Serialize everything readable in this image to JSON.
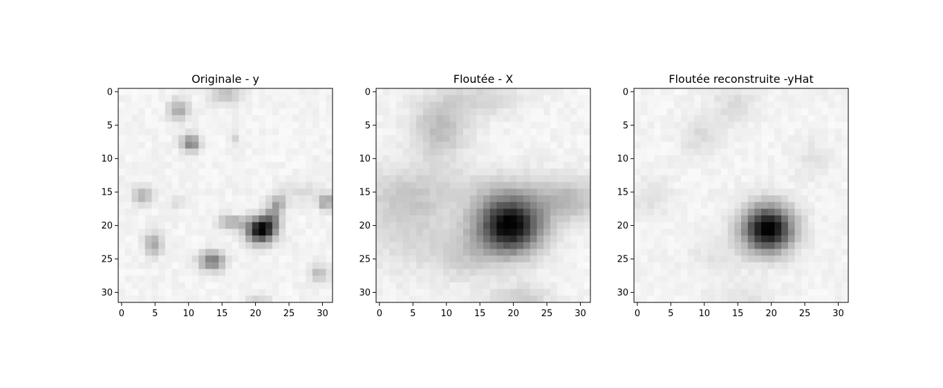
{
  "figure": {
    "background": "#ffffff",
    "colormap": "Greys",
    "axis_color": "#000000"
  },
  "chart_data": [
    {
      "type": "heatmap",
      "title": "Originale - y",
      "grid": false,
      "xlim": [
        -0.5,
        31.5
      ],
      "ylim": [
        31.5,
        -0.5
      ],
      "xticks": [
        0,
        5,
        10,
        15,
        20,
        25,
        30
      ],
      "yticks": [
        0,
        5,
        10,
        15,
        20,
        25,
        30
      ],
      "shape": [
        32,
        32
      ],
      "blobs": [
        {
          "x": 15.5,
          "y": 0.5,
          "sx": 1.6,
          "sy": 0.9,
          "amp": 0.22
        },
        {
          "x": 8.5,
          "y": 2.8,
          "sx": 1.0,
          "sy": 1.1,
          "amp": 0.32
        },
        {
          "x": 10.3,
          "y": 7.7,
          "sx": 1.0,
          "sy": 0.9,
          "amp": 0.45
        },
        {
          "x": 17.0,
          "y": 7.2,
          "sx": 0.6,
          "sy": 0.7,
          "amp": 0.12
        },
        {
          "x": 3.2,
          "y": 15.5,
          "sx": 1.0,
          "sy": 1.0,
          "amp": 0.28
        },
        {
          "x": 8.5,
          "y": 16.5,
          "sx": 0.7,
          "sy": 0.6,
          "amp": 0.12
        },
        {
          "x": 23.3,
          "y": 16.7,
          "sx": 0.8,
          "sy": 0.9,
          "amp": 0.3
        },
        {
          "x": 30.5,
          "y": 16.5,
          "sx": 0.8,
          "sy": 0.8,
          "amp": 0.35
        },
        {
          "x": 27.0,
          "y": 15.0,
          "sx": 2.5,
          "sy": 1.0,
          "amp": 0.1
        },
        {
          "x": 16.5,
          "y": 19.5,
          "sx": 1.5,
          "sy": 0.7,
          "amp": 0.3
        },
        {
          "x": 20.8,
          "y": 20.7,
          "sx": 1.4,
          "sy": 1.3,
          "amp": 1.0
        },
        {
          "x": 22.5,
          "y": 19.0,
          "sx": 0.9,
          "sy": 1.2,
          "amp": 0.35
        },
        {
          "x": 4.8,
          "y": 22.8,
          "sx": 1.0,
          "sy": 1.2,
          "amp": 0.3
        },
        {
          "x": 13.5,
          "y": 25.3,
          "sx": 1.3,
          "sy": 1.0,
          "amp": 0.5
        },
        {
          "x": 29.5,
          "y": 27.2,
          "sx": 0.9,
          "sy": 0.9,
          "amp": 0.25
        },
        {
          "x": 20.5,
          "y": 31.2,
          "sx": 1.3,
          "sy": 0.6,
          "amp": 0.12
        }
      ]
    },
    {
      "type": "heatmap",
      "title": "Floutée - X",
      "grid": false,
      "xlim": [
        -0.5,
        31.5
      ],
      "ylim": [
        31.5,
        -0.5
      ],
      "xticks": [
        0,
        5,
        10,
        15,
        20,
        25,
        30
      ],
      "yticks": [
        0,
        5,
        10,
        15,
        20,
        25,
        30
      ],
      "shape": [
        32,
        32
      ],
      "blobs": [
        {
          "x": 9.0,
          "y": 5.5,
          "sx": 2.8,
          "sy": 3.2,
          "amp": 0.22
        },
        {
          "x": 15.0,
          "y": 1.0,
          "sx": 4.0,
          "sy": 2.0,
          "amp": 0.12
        },
        {
          "x": 16.0,
          "y": 15.0,
          "sx": 16.0,
          "sy": 2.5,
          "amp": 0.1
        },
        {
          "x": 4.0,
          "y": 19.0,
          "sx": 4.0,
          "sy": 5.0,
          "amp": 0.14
        },
        {
          "x": 13.0,
          "y": 24.0,
          "sx": 3.5,
          "sy": 3.0,
          "amp": 0.15
        },
        {
          "x": 19.5,
          "y": 20.0,
          "sx": 3.3,
          "sy": 2.9,
          "amp": 0.98
        },
        {
          "x": 28.0,
          "y": 16.5,
          "sx": 3.0,
          "sy": 2.0,
          "amp": 0.18
        },
        {
          "x": 21.0,
          "y": 31.0,
          "sx": 3.0,
          "sy": 1.5,
          "amp": 0.16
        }
      ]
    },
    {
      "type": "heatmap",
      "title": "Floutée reconstruite -yHat",
      "grid": false,
      "xlim": [
        -0.5,
        31.5
      ],
      "ylim": [
        31.5,
        -0.5
      ],
      "xticks": [
        0,
        5,
        10,
        15,
        20,
        25,
        30
      ],
      "yticks": [
        0,
        5,
        10,
        15,
        20,
        25,
        30
      ],
      "shape": [
        32,
        32
      ],
      "blobs": [
        {
          "x": 14.5,
          "y": 2.0,
          "sx": 2.2,
          "sy": 2.2,
          "amp": 0.1
        },
        {
          "x": 9.5,
          "y": 6.5,
          "sx": 2.0,
          "sy": 2.0,
          "amp": 0.1
        },
        {
          "x": 2.0,
          "y": 16.0,
          "sx": 2.0,
          "sy": 2.0,
          "amp": 0.08
        },
        {
          "x": 26.0,
          "y": 10.0,
          "sx": 2.0,
          "sy": 2.0,
          "amp": 0.06
        },
        {
          "x": 19.5,
          "y": 20.5,
          "sx": 2.6,
          "sy": 2.4,
          "amp": 1.0
        },
        {
          "x": 12.0,
          "y": 24.5,
          "sx": 3.0,
          "sy": 2.0,
          "amp": 0.06
        },
        {
          "x": 16.0,
          "y": 30.5,
          "sx": 3.0,
          "sy": 1.5,
          "amp": 0.07
        }
      ]
    }
  ]
}
